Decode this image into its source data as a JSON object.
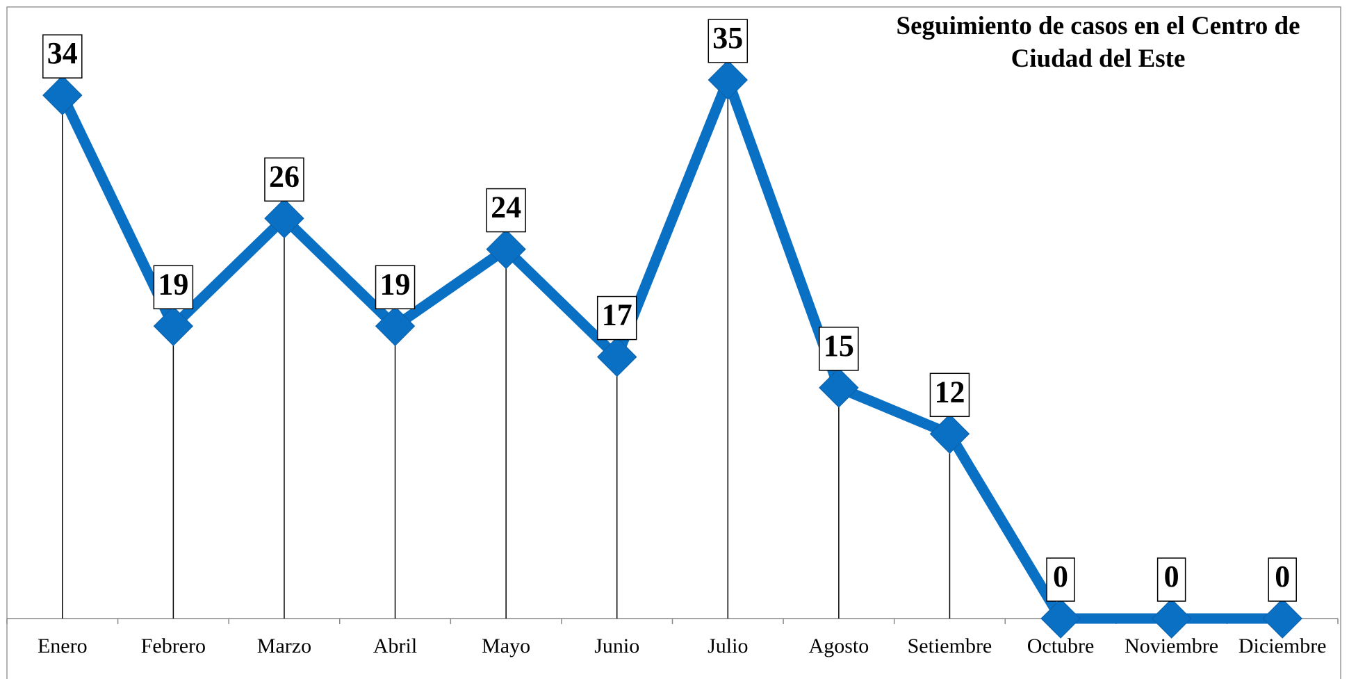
{
  "chart_data": {
    "type": "line",
    "title": "Seguimiento de casos en el Centro de Ciudad del Este",
    "categories": [
      "Enero",
      "Febrero",
      "Marzo",
      "Abril",
      "Mayo",
      "Junio",
      "Julio",
      "Agosto",
      "Setiembre",
      "Octubre",
      "Noviembre",
      "Diciembre"
    ],
    "series": [
      {
        "color": "#0a70c4",
        "values": [
          34,
          19,
          26,
          19,
          24,
          17,
          35,
          15,
          12,
          0,
          0,
          0
        ]
      }
    ],
    "ylim": [
      0,
      35
    ]
  }
}
